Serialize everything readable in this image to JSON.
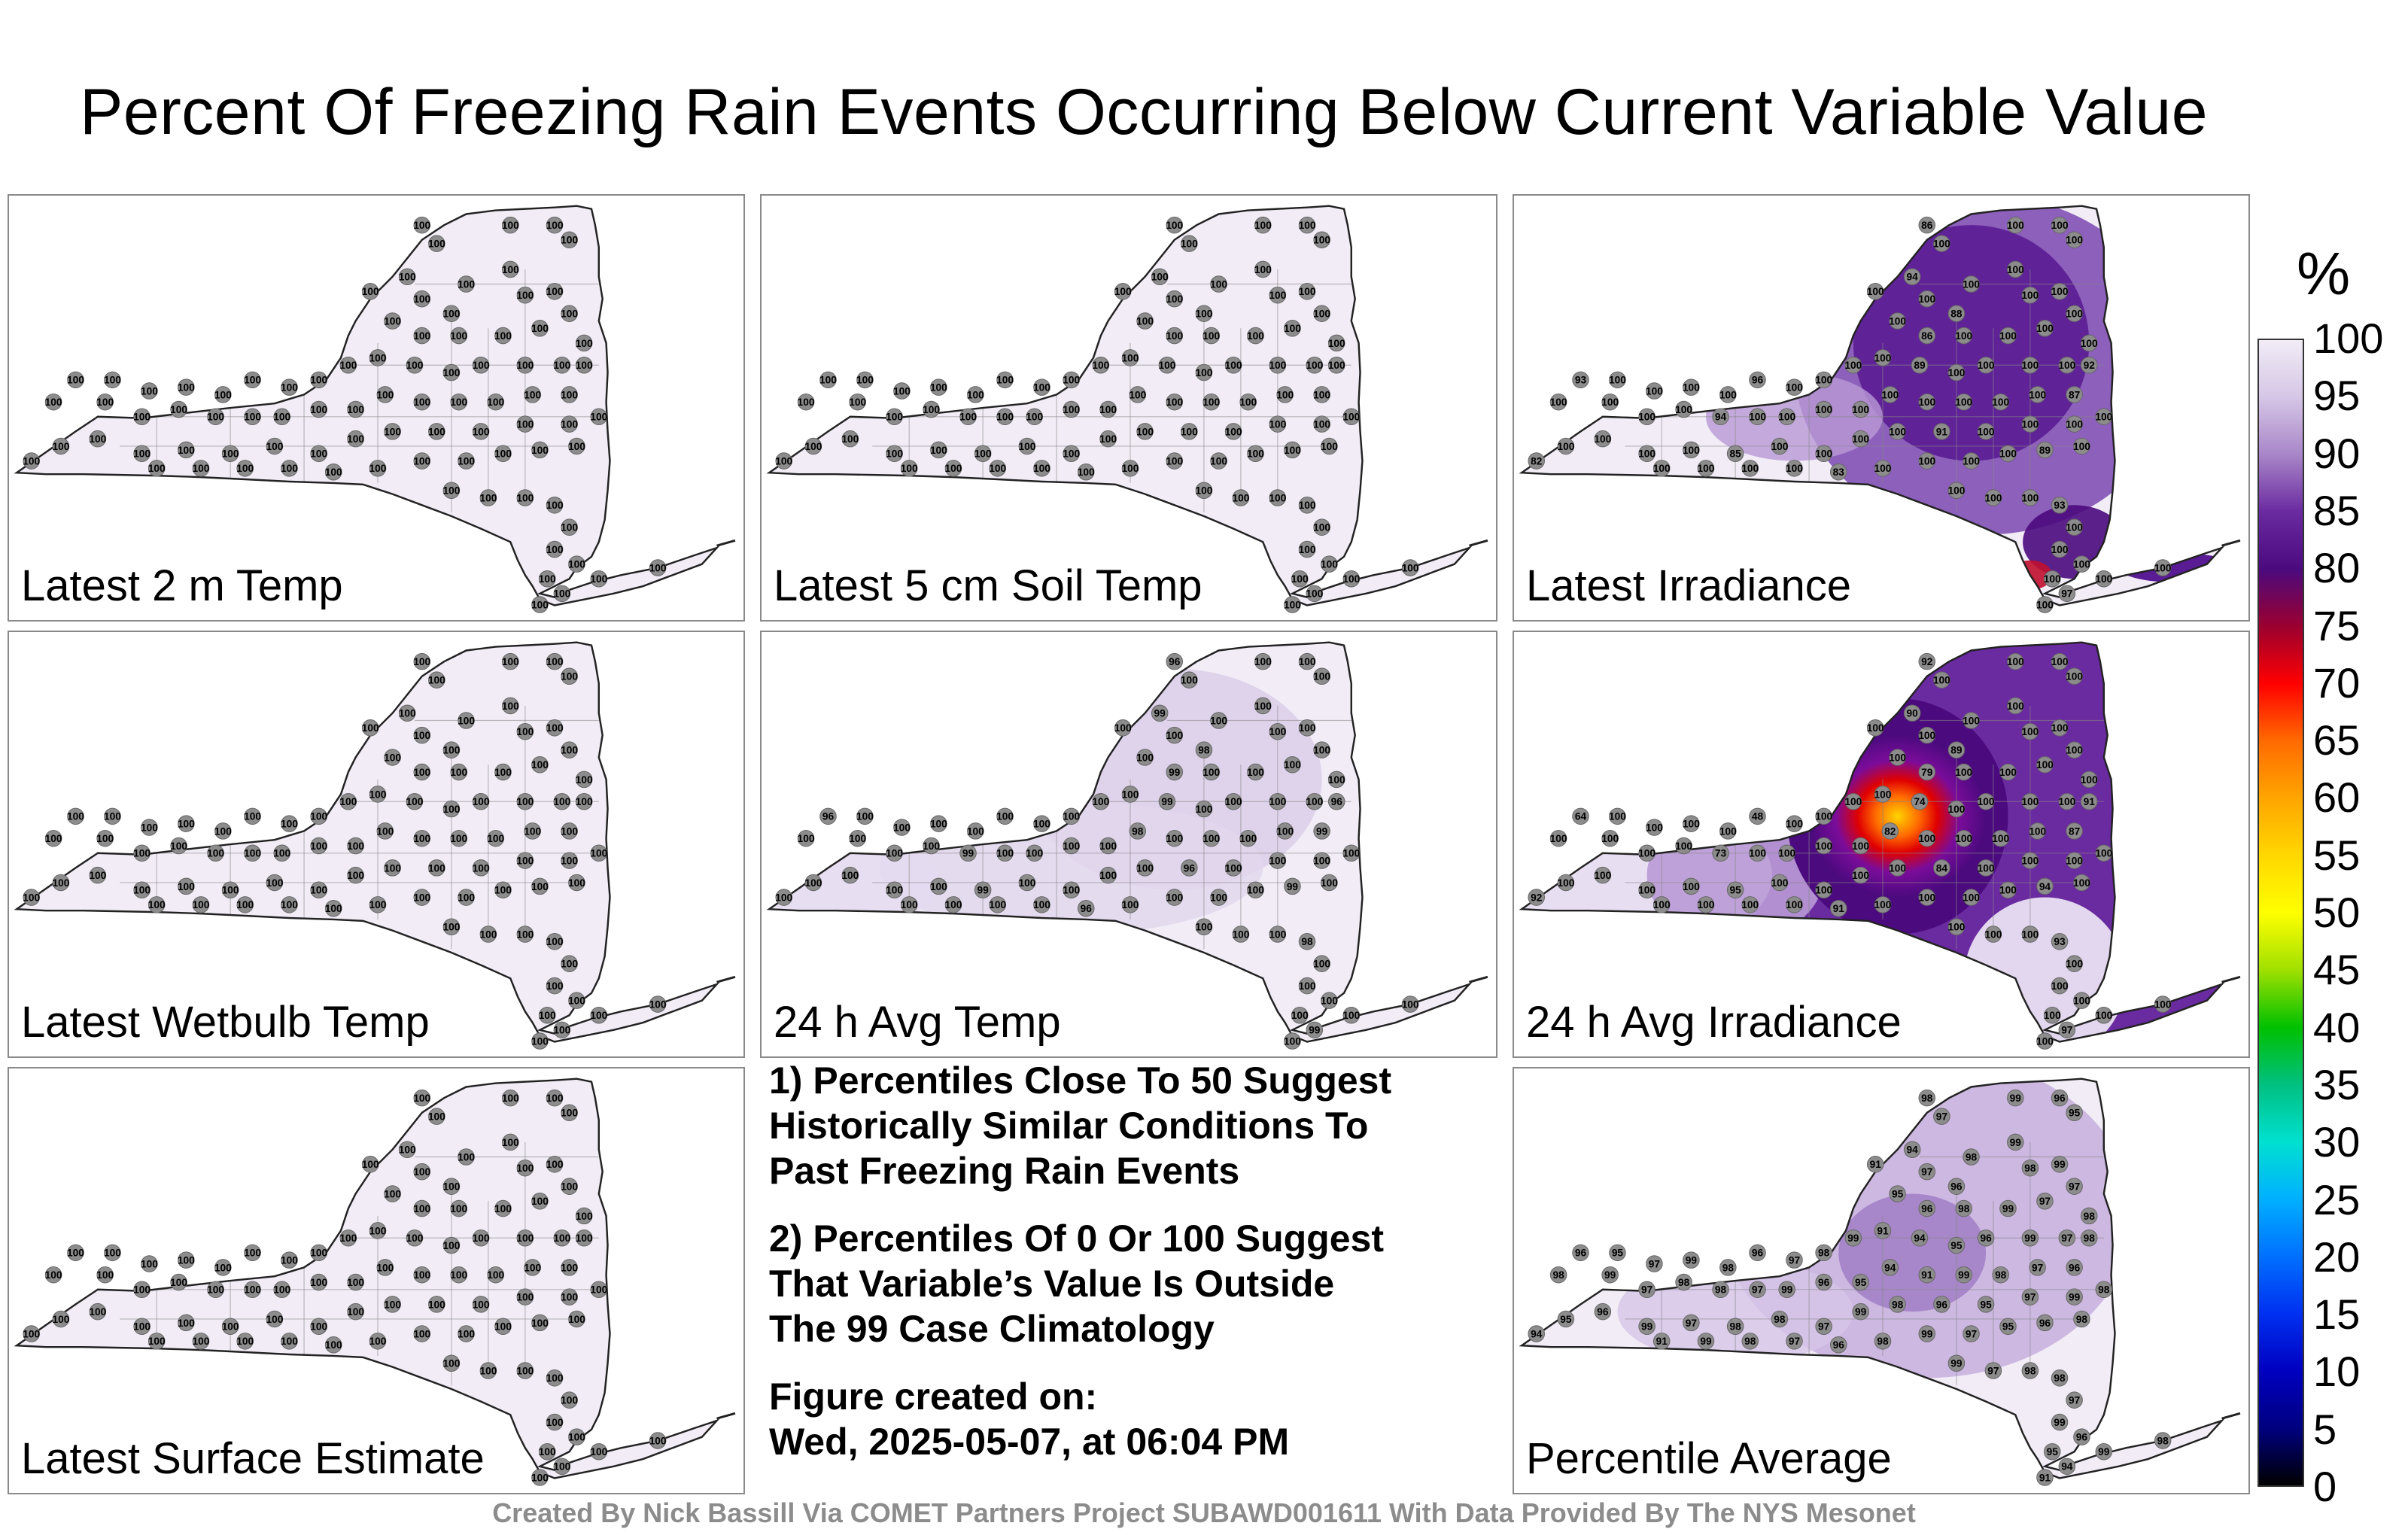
{
  "title": "Percent Of Freezing Rain Events Occurring Below Current Variable Value",
  "panels": [
    {
      "label": "Latest 2 m Temp",
      "style": "uniform"
    },
    {
      "label": "Latest 5 cm Soil Temp",
      "style": "uniform"
    },
    {
      "label": "Latest Irradiance",
      "style": "irradiance"
    },
    {
      "label": "Latest Wetbulb Temp",
      "style": "uniform"
    },
    {
      "label": "24 h Avg Temp",
      "style": "avgtemp"
    },
    {
      "label": "24 h Avg Irradiance",
      "style": "avgirr"
    },
    {
      "label": "Latest Surface Estimate",
      "style": "uniform"
    },
    {
      "label": "Percentile Average",
      "style": "average"
    }
  ],
  "notes": {
    "note1": "1) Percentiles Close To 50 Suggest\nHistorically Similar Conditions To\nPast Freezing Rain Events",
    "note2": "2) Percentiles Of 0 Or 100 Suggest\nThat Variable’s Value Is Outside\nThe 99 Case Climatology",
    "created_label": "Figure created on:",
    "created_value": "Wed, 2025-05-07, at 06:04 PM"
  },
  "colorbar": {
    "unit": "%",
    "ticks": [
      "100",
      "95",
      "90",
      "85",
      "80",
      "75",
      "70",
      "65",
      "60",
      "55",
      "50",
      "45",
      "40",
      "35",
      "30",
      "25",
      "20",
      "15",
      "10",
      "5",
      "0"
    ],
    "colors": [
      "#f1ecf6",
      "#d6c6e6",
      "#a886c8",
      "#6a2aa0",
      "#4b0a7e",
      "#9b0030",
      "#ff0000",
      "#ff6a00",
      "#ffa500",
      "#ffd700",
      "#ffff00",
      "#a0e000",
      "#00c000",
      "#00c080",
      "#00e0d0",
      "#00b0ff",
      "#0070ff",
      "#0030f0",
      "#0000c0",
      "#000080",
      "#000000"
    ]
  },
  "station_values": {
    "uniform": "100",
    "irradiance": [
      "86",
      "94",
      "88",
      "86",
      "92",
      "89",
      "96",
      "93",
      "94",
      "100",
      "87",
      "91",
      "85",
      "82",
      "83",
      "89",
      "93",
      "97",
      "96",
      "98",
      "92",
      "86",
      "93",
      "88",
      "89",
      "97",
      "84",
      "91",
      "76",
      "86",
      "89"
    ],
    "avgtemp": [
      "96",
      "99",
      "98",
      "99",
      "96",
      "99",
      "100"
    ],
    "avgirr": [
      "92",
      "90",
      "89",
      "79",
      "91",
      "74",
      "48",
      "64",
      "73",
      "82",
      "87",
      "84",
      "95",
      "92",
      "91",
      "94",
      "93",
      "97"
    ],
    "average": [
      "98",
      "97",
      "99",
      "96",
      "95",
      "94",
      "91",
      "99",
      "98",
      "97",
      "96",
      "98",
      "99",
      "97",
      "95",
      "96",
      "98",
      "99",
      "97",
      "98"
    ]
  },
  "footer": "Created By Nick Bassill Via COMET Partners Project SUBAWD001611 With Data Provided By The NYS Mesonet"
}
